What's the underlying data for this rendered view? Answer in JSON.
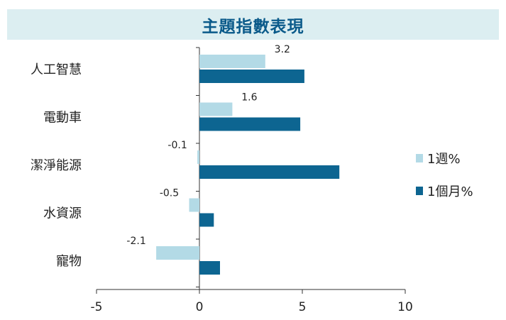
{
  "chart_data": {
    "type": "bar",
    "orientation": "horizontal",
    "title": "主題指數表現",
    "categories": [
      "人工智慧",
      "電動車",
      "潔淨能源",
      "水資源",
      "寵物"
    ],
    "series": [
      {
        "name": "1週%",
        "color": "#b3dae6",
        "values": [
          3.2,
          1.6,
          -0.1,
          -0.5,
          -2.1
        ],
        "labels": [
          "3.2",
          "1.6",
          "-0.1",
          "-0.5",
          "-2.1"
        ]
      },
      {
        "name": "1個月%",
        "color": "#0d6591",
        "values": [
          5.1,
          4.9,
          6.8,
          0.7,
          1.0
        ]
      }
    ],
    "xlim": [
      -5,
      10
    ],
    "xticks": [
      -5,
      0,
      5,
      10
    ],
    "grid": false,
    "legend": "right"
  }
}
